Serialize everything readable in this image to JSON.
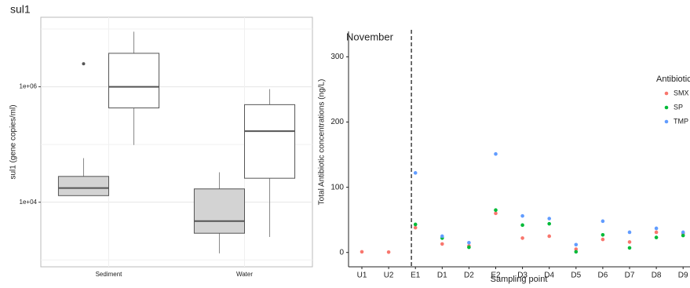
{
  "chart_data": [
    {
      "type": "box",
      "title": "sul1",
      "ylabel": "sul1 (gene copies/ml)",
      "categories": [
        "Sediment",
        "Water"
      ],
      "log_y": true,
      "ylim": [
        760,
        16000000
      ],
      "yticks": [
        {
          "value": 10000,
          "label": "1e+04"
        },
        {
          "value": 1000000,
          "label": "1e+06"
        }
      ],
      "yminor": [
        1000,
        100000,
        10000000
      ],
      "grid": true,
      "series": [
        {
          "color": "#d3d3d3",
          "boxes": [
            {
              "min": 13000,
              "q1": 13000,
              "median": 17600,
              "q3": 28000,
              "max": 58000,
              "outliers": []
            },
            {
              "min": 1300,
              "q1": 2900,
              "median": 4700,
              "q3": 17000,
              "max": 33000,
              "outliers": []
            }
          ]
        },
        {
          "color": "#ffffff",
          "boxes": [
            {
              "min": 98000,
              "q1": 430000,
              "median": 1000000,
              "q3": 3800000,
              "max": 9000000,
              "outliers": [
                2500000
              ]
            },
            {
              "min": 2500,
              "q1": 26000,
              "median": 170000,
              "q3": 490000,
              "max": 910000,
              "outliers": []
            }
          ]
        }
      ]
    },
    {
      "type": "scatter",
      "annotation": "November",
      "xlabel": "Sampling point",
      "ylabel": "Total Antibiotic concentrations (ng/L)",
      "legend_title": "Antibiotic",
      "legend": "right",
      "categories": [
        "U1",
        "U2",
        "E1",
        "D1",
        "D2",
        "E2",
        "D3",
        "D4",
        "D5",
        "D6",
        "D7",
        "D8",
        "D9"
      ],
      "ylim": [
        -22,
        339
      ],
      "yticks": [
        0,
        100,
        200,
        300
      ],
      "series": [
        {
          "name": "SMX",
          "color": "#f8766d",
          "values": [
            1,
            0.5,
            38,
            13,
            10,
            60,
            22,
            25,
            5,
            20,
            16,
            31,
            29
          ]
        },
        {
          "name": "SP",
          "color": "#00ba38",
          "values": [
            null,
            null,
            43,
            22,
            8,
            65,
            42,
            44,
            1,
            27,
            7,
            23,
            26
          ]
        },
        {
          "name": "TMP",
          "color": "#619cff",
          "values": [
            null,
            null,
            122,
            25,
            15,
            151,
            56,
            52,
            12,
            48,
            31,
            37,
            31
          ]
        }
      ]
    }
  ]
}
